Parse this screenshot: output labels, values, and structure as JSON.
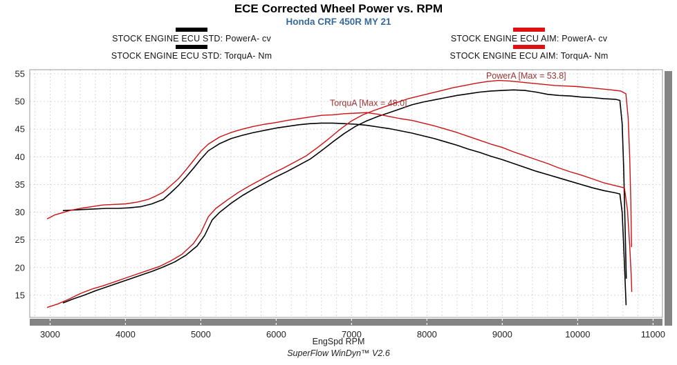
{
  "title": "ECE Corrected Wheel Power vs. RPM",
  "subtitle": "Honda CRF 450R MY 21",
  "footer": "SuperFlow WinDyn™ V2.6",
  "colors": {
    "std_series": "#000000",
    "aim_series": "#cc1012",
    "std_swatch": "#000000",
    "aim_swatch": "#e01012",
    "annotation": "#993333",
    "grid": "#d8d8d8",
    "plot_border": "#9a9a9a",
    "scrollbar": "#848484",
    "tick_text": "#222222",
    "subtitle_color": "#38699b"
  },
  "legend": {
    "left": [
      {
        "label": "STOCK ENGINE ECU STD: PowerA- cv",
        "swatch": "std"
      },
      {
        "label": "STOCK ENGINE ECU STD: TorquA- Nm",
        "swatch": "std"
      }
    ],
    "right": [
      {
        "label": "STOCK ENGINE ECU AIM: PowerA- cv",
        "swatch": "aim"
      },
      {
        "label": "STOCK ENGINE ECU AIM: TorquA- Nm",
        "swatch": "aim"
      }
    ]
  },
  "chart_data": {
    "type": "line",
    "title": "ECE Corrected Wheel Power vs. RPM",
    "subtitle": "Honda CRF 450R MY 21",
    "xlabel": "EngSpd RPM",
    "ylabel": "",
    "x_range": [
      2730,
      11125
    ],
    "y_range": [
      11.0,
      55.75
    ],
    "x_ticks": [
      3000,
      4000,
      5000,
      6000,
      7000,
      8000,
      9000,
      10000,
      11000
    ],
    "y_ticks": [
      15,
      20,
      25,
      30,
      35,
      40,
      45,
      50,
      55
    ],
    "grid": {
      "minor_x_step": 200,
      "major_y_step": 5,
      "style": "dashed"
    },
    "legend_position": "top-split",
    "annotations": [
      {
        "text": "PowerA [Max = 53.8]",
        "x": 8785,
        "y": 54.15
      },
      {
        "text": "TorquA [Max = 48.0]",
        "x": 6712,
        "y": 49.2
      }
    ],
    "series": [
      {
        "name": "STOCK ENGINE ECU STD: PowerA- cv",
        "color_key": "std_series",
        "width": 1.6,
        "points": [
          [
            3170,
            13.6
          ],
          [
            3300,
            14.3
          ],
          [
            3450,
            15.0
          ],
          [
            3600,
            15.8
          ],
          [
            3750,
            16.5
          ],
          [
            3900,
            17.2
          ],
          [
            4050,
            17.9
          ],
          [
            4200,
            18.6
          ],
          [
            4350,
            19.3
          ],
          [
            4500,
            20.1
          ],
          [
            4650,
            21.0
          ],
          [
            4800,
            22.2
          ],
          [
            4950,
            23.9
          ],
          [
            5050,
            25.8
          ],
          [
            5150,
            28.6
          ],
          [
            5250,
            30.0
          ],
          [
            5400,
            31.6
          ],
          [
            5550,
            33.0
          ],
          [
            5700,
            34.2
          ],
          [
            5850,
            35.3
          ],
          [
            6000,
            36.4
          ],
          [
            6150,
            37.4
          ],
          [
            6300,
            38.5
          ],
          [
            6450,
            39.6
          ],
          [
            6600,
            41.1
          ],
          [
            6750,
            42.7
          ],
          [
            6900,
            44.2
          ],
          [
            7050,
            45.5
          ],
          [
            7200,
            46.5
          ],
          [
            7350,
            47.3
          ],
          [
            7500,
            48.0
          ],
          [
            7650,
            48.7
          ],
          [
            7800,
            49.4
          ],
          [
            7950,
            49.9
          ],
          [
            8100,
            50.3
          ],
          [
            8250,
            50.7
          ],
          [
            8400,
            51.1
          ],
          [
            8550,
            51.4
          ],
          [
            8700,
            51.7
          ],
          [
            8850,
            51.9
          ],
          [
            9000,
            52.0
          ],
          [
            9150,
            52.1
          ],
          [
            9300,
            52.0
          ],
          [
            9450,
            51.7
          ],
          [
            9600,
            51.3
          ],
          [
            9750,
            51.1
          ],
          [
            9900,
            51.0
          ],
          [
            10050,
            50.8
          ],
          [
            10200,
            50.7
          ],
          [
            10350,
            50.5
          ],
          [
            10500,
            50.4
          ],
          [
            10560,
            50.2
          ],
          [
            10590,
            46.0
          ],
          [
            10610,
            38.0
          ],
          [
            10630,
            27.0
          ],
          [
            10645,
            18.0
          ]
        ]
      },
      {
        "name": "STOCK ENGINE ECU STD: TorquA- Nm",
        "color_key": "std_series",
        "width": 1.6,
        "points": [
          [
            3170,
            30.3
          ],
          [
            3300,
            30.4
          ],
          [
            3450,
            30.5
          ],
          [
            3600,
            30.6
          ],
          [
            3750,
            30.7
          ],
          [
            3900,
            30.7
          ],
          [
            4050,
            30.8
          ],
          [
            4200,
            31.0
          ],
          [
            4350,
            31.5
          ],
          [
            4500,
            32.3
          ],
          [
            4600,
            33.5
          ],
          [
            4700,
            34.8
          ],
          [
            4800,
            36.3
          ],
          [
            4900,
            37.9
          ],
          [
            5000,
            39.6
          ],
          [
            5100,
            41.1
          ],
          [
            5250,
            42.4
          ],
          [
            5400,
            43.3
          ],
          [
            5550,
            43.9
          ],
          [
            5700,
            44.4
          ],
          [
            5850,
            44.8
          ],
          [
            6000,
            45.2
          ],
          [
            6150,
            45.5
          ],
          [
            6300,
            45.8
          ],
          [
            6450,
            46.0
          ],
          [
            6600,
            46.1
          ],
          [
            6750,
            46.1
          ],
          [
            6900,
            46.0
          ],
          [
            7050,
            45.9
          ],
          [
            7200,
            45.7
          ],
          [
            7350,
            45.4
          ],
          [
            7500,
            45.1
          ],
          [
            7650,
            44.7
          ],
          [
            7800,
            44.3
          ],
          [
            7950,
            43.8
          ],
          [
            8100,
            43.3
          ],
          [
            8250,
            42.7
          ],
          [
            8400,
            42.1
          ],
          [
            8550,
            41.4
          ],
          [
            8700,
            40.8
          ],
          [
            8850,
            40.1
          ],
          [
            9000,
            39.5
          ],
          [
            9150,
            38.8
          ],
          [
            9300,
            38.1
          ],
          [
            9450,
            37.4
          ],
          [
            9600,
            36.8
          ],
          [
            9750,
            36.2
          ],
          [
            9900,
            35.6
          ],
          [
            10050,
            35.0
          ],
          [
            10200,
            34.4
          ],
          [
            10350,
            33.9
          ],
          [
            10500,
            33.5
          ],
          [
            10560,
            33.3
          ],
          [
            10590,
            30.0
          ],
          [
            10610,
            24.0
          ],
          [
            10630,
            17.5
          ],
          [
            10642,
            13.2
          ]
        ]
      },
      {
        "name": "STOCK ENGINE ECU AIM: PowerA- cv",
        "color_key": "aim_series",
        "width": 1.4,
        "points": [
          [
            2960,
            12.8
          ],
          [
            3100,
            13.4
          ],
          [
            3250,
            14.3
          ],
          [
            3400,
            15.3
          ],
          [
            3550,
            16.1
          ],
          [
            3700,
            16.7
          ],
          [
            3850,
            17.4
          ],
          [
            4000,
            18.1
          ],
          [
            4150,
            18.8
          ],
          [
            4300,
            19.5
          ],
          [
            4450,
            20.2
          ],
          [
            4600,
            21.2
          ],
          [
            4750,
            22.4
          ],
          [
            4900,
            24.3
          ],
          [
            5000,
            26.3
          ],
          [
            5100,
            29.2
          ],
          [
            5200,
            30.7
          ],
          [
            5350,
            32.2
          ],
          [
            5500,
            33.6
          ],
          [
            5650,
            34.8
          ],
          [
            5800,
            35.9
          ],
          [
            5950,
            37.0
          ],
          [
            6100,
            38.0
          ],
          [
            6250,
            39.1
          ],
          [
            6400,
            40.2
          ],
          [
            6550,
            41.7
          ],
          [
            6700,
            43.3
          ],
          [
            6850,
            45.0
          ],
          [
            7000,
            46.5
          ],
          [
            7150,
            47.6
          ],
          [
            7300,
            48.4
          ],
          [
            7450,
            49.1
          ],
          [
            7600,
            49.8
          ],
          [
            7750,
            50.5
          ],
          [
            7900,
            51.0
          ],
          [
            8050,
            51.5
          ],
          [
            8200,
            52.0
          ],
          [
            8350,
            52.5
          ],
          [
            8500,
            52.9
          ],
          [
            8650,
            53.3
          ],
          [
            8800,
            53.6
          ],
          [
            8950,
            53.8
          ],
          [
            9100,
            53.7
          ],
          [
            9250,
            53.5
          ],
          [
            9400,
            53.3
          ],
          [
            9550,
            53.1
          ],
          [
            9700,
            52.9
          ],
          [
            9850,
            52.8
          ],
          [
            10000,
            52.7
          ],
          [
            10150,
            52.5
          ],
          [
            10300,
            52.3
          ],
          [
            10450,
            52.1
          ],
          [
            10570,
            51.9
          ],
          [
            10640,
            51.4
          ],
          [
            10670,
            47.0
          ],
          [
            10690,
            40.0
          ],
          [
            10705,
            32.0
          ],
          [
            10715,
            23.7
          ]
        ]
      },
      {
        "name": "STOCK ENGINE ECU AIM: TorquA- Nm",
        "color_key": "aim_series",
        "width": 1.4,
        "points": [
          [
            2960,
            28.8
          ],
          [
            3060,
            29.5
          ],
          [
            3160,
            29.9
          ],
          [
            3260,
            30.3
          ],
          [
            3400,
            30.7
          ],
          [
            3550,
            31.0
          ],
          [
            3700,
            31.3
          ],
          [
            3850,
            31.4
          ],
          [
            4000,
            31.5
          ],
          [
            4150,
            31.8
          ],
          [
            4300,
            32.3
          ],
          [
            4400,
            32.9
          ],
          [
            4500,
            33.6
          ],
          [
            4600,
            34.8
          ],
          [
            4700,
            36.0
          ],
          [
            4800,
            37.6
          ],
          [
            4900,
            39.3
          ],
          [
            5000,
            41.0
          ],
          [
            5100,
            42.3
          ],
          [
            5250,
            43.6
          ],
          [
            5400,
            44.4
          ],
          [
            5550,
            45.0
          ],
          [
            5700,
            45.5
          ],
          [
            5850,
            45.9
          ],
          [
            6000,
            46.2
          ],
          [
            6150,
            46.6
          ],
          [
            6300,
            46.9
          ],
          [
            6450,
            47.2
          ],
          [
            6600,
            47.5
          ],
          [
            6750,
            47.6
          ],
          [
            6900,
            47.8
          ],
          [
            7050,
            47.9
          ],
          [
            7200,
            48.0
          ],
          [
            7350,
            47.7
          ],
          [
            7500,
            47.3
          ],
          [
            7650,
            46.9
          ],
          [
            7800,
            46.6
          ],
          [
            7950,
            46.1
          ],
          [
            8100,
            45.6
          ],
          [
            8250,
            45.0
          ],
          [
            8400,
            44.4
          ],
          [
            8550,
            43.7
          ],
          [
            8700,
            43.0
          ],
          [
            8850,
            42.3
          ],
          [
            9000,
            41.7
          ],
          [
            9150,
            40.9
          ],
          [
            9300,
            40.2
          ],
          [
            9450,
            39.5
          ],
          [
            9600,
            38.8
          ],
          [
            9750,
            38.0
          ],
          [
            9900,
            37.3
          ],
          [
            10050,
            36.7
          ],
          [
            10200,
            36.0
          ],
          [
            10350,
            35.3
          ],
          [
            10500,
            34.8
          ],
          [
            10620,
            34.4
          ],
          [
            10660,
            30.5
          ],
          [
            10690,
            24.0
          ],
          [
            10710,
            18.5
          ],
          [
            10718,
            15.6
          ]
        ]
      }
    ],
    "max_values": {
      "PowerA": 53.8,
      "TorquA": 48.0
    }
  }
}
